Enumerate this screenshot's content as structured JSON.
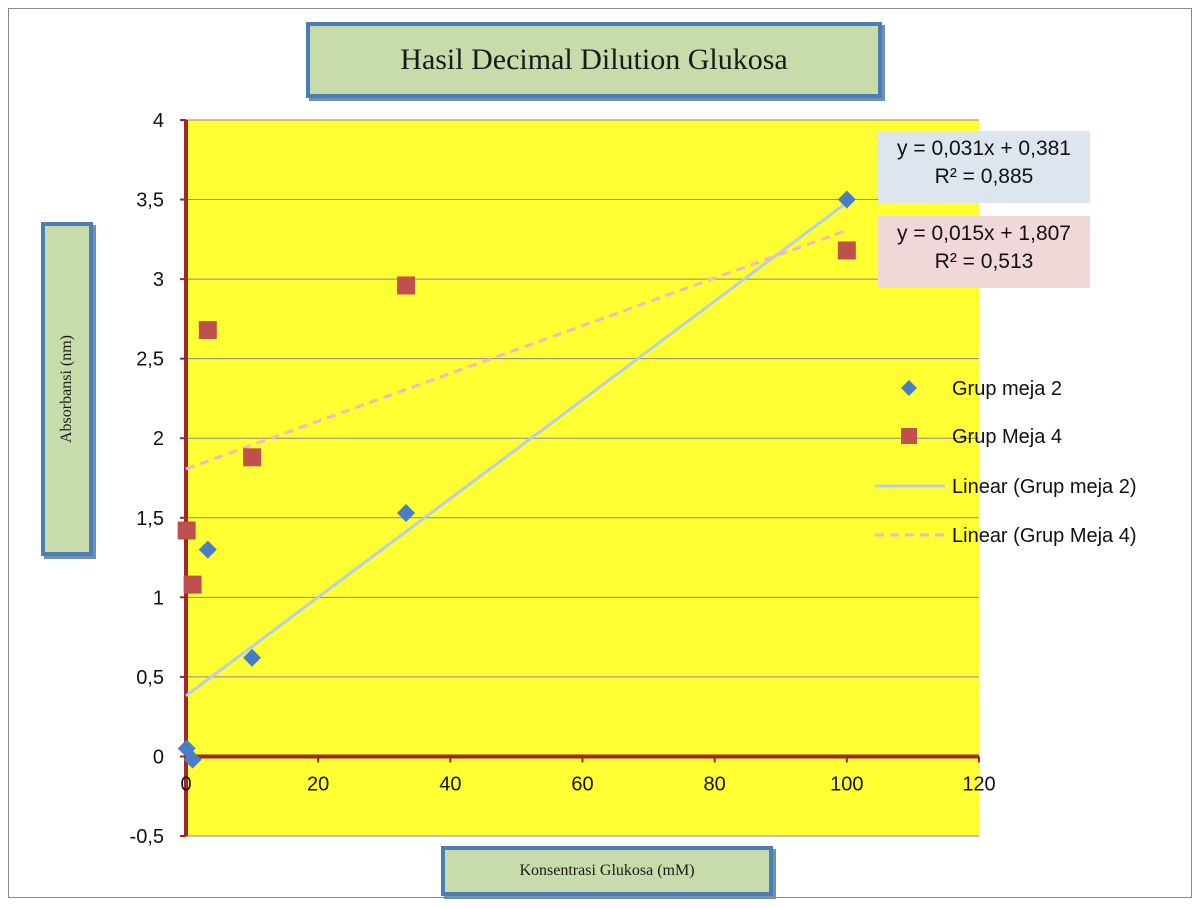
{
  "chart_data": {
    "type": "scatter",
    "title": "Hasil Decimal Dilution Glukosa",
    "xlabel": "Konsentrasi Glukosa (mM)",
    "ylabel": "Absorbansi (nm)",
    "xlim": [
      0,
      120
    ],
    "ylim": [
      -0.5,
      4
    ],
    "x_ticks": [
      "0",
      "20",
      "40",
      "60",
      "80",
      "100",
      "120"
    ],
    "y_ticks": [
      "-0,5",
      "0",
      "0,5",
      "1",
      "1,5",
      "2",
      "2,5",
      "3",
      "3,5",
      "4"
    ],
    "grid": true,
    "legend_position": "right",
    "series": [
      {
        "name": "Grup meja 2",
        "marker": "diamond",
        "color": "#4a7ec4",
        "x": [
          0.1,
          1,
          3.3,
          10,
          33.3,
          100
        ],
        "y": [
          0.05,
          -0.02,
          1.3,
          0.62,
          1.53,
          3.5
        ]
      },
      {
        "name": "Grup Meja 4",
        "marker": "square",
        "color": "#c0504d",
        "x": [
          0.1,
          1,
          3.3,
          10,
          33.3,
          100
        ],
        "y": [
          1.42,
          1.08,
          2.68,
          1.88,
          2.96,
          3.18
        ]
      }
    ],
    "trendlines": [
      {
        "name": "Linear (Grup meja 2)",
        "slope": 0.031,
        "intercept": 0.381,
        "style": "solid",
        "color": "#b9cde5",
        "equation": "y = 0,031x + 0,381",
        "r2": "R² = 0,885"
      },
      {
        "name": "Linear (Grup Meja 4)",
        "slope": 0.015,
        "intercept": 1.807,
        "style": "dashed",
        "color": "#f2b8be",
        "equation": "y = 0,015x + 1,807",
        "r2": "R² = 0,513"
      }
    ]
  }
}
